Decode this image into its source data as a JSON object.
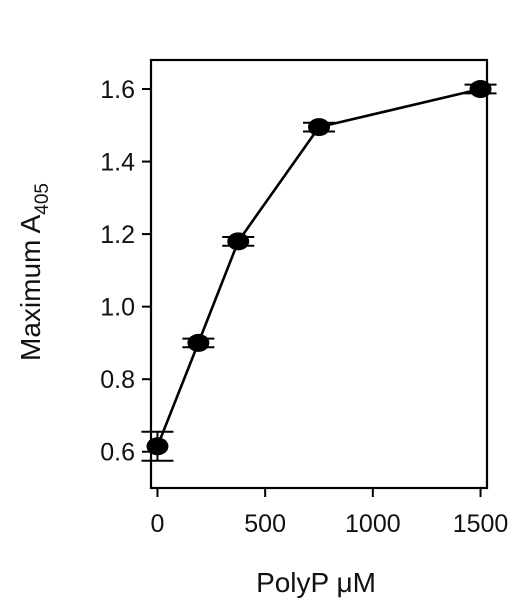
{
  "chart_data": {
    "type": "line",
    "title": "",
    "xlabel": "PolyP μM",
    "ylabel": "Maximum A",
    "ylabel_subscript": "405",
    "xlim": [
      -30,
      1530
    ],
    "ylim": [
      0.5,
      1.68
    ],
    "x_ticks": [
      0,
      500,
      1000,
      1500
    ],
    "y_ticks": [
      0.6,
      0.8,
      1.0,
      1.2,
      1.4,
      1.6
    ],
    "x_tick_labels": [
      "0",
      "500",
      "1000",
      "1500"
    ],
    "y_tick_labels": [
      "0.6",
      "0.8",
      "1.0",
      "1.2",
      "1.4",
      "1.6"
    ],
    "grid": false,
    "legend": "none",
    "series": [
      {
        "x": [
          0,
          190,
          375,
          750,
          1500
        ],
        "y": [
          0.615,
          0.9,
          1.18,
          1.495,
          1.6
        ],
        "error": [
          0.04,
          0.012,
          0.012,
          0.012,
          0.012
        ]
      }
    ],
    "colors": {
      "line": "#000000",
      "marker": "#000000"
    }
  }
}
